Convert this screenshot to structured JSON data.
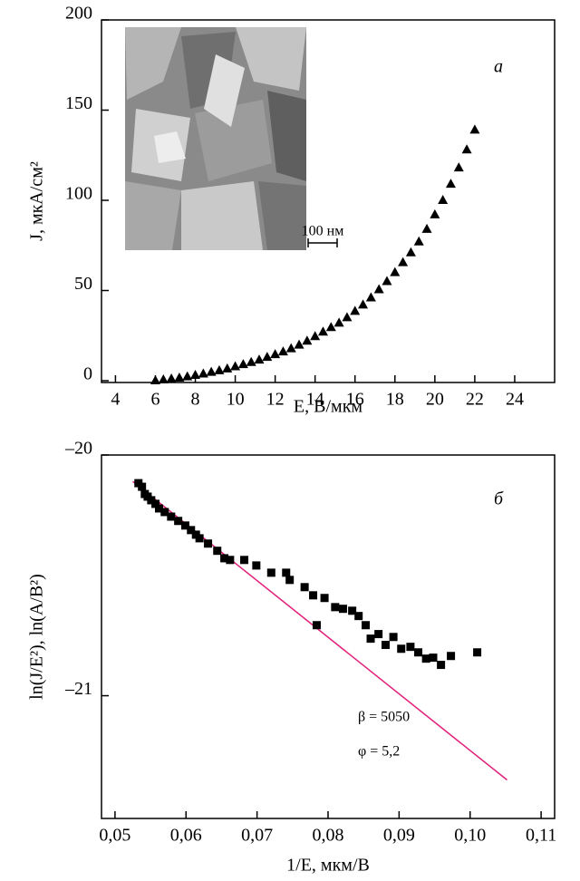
{
  "chart_data": [
    {
      "type": "scatter",
      "marker": "triangle",
      "color": "#000000",
      "panel_label": "а",
      "inset_scale_label": "100 нм",
      "x_label": "E, В/мкм",
      "y_label": "J, мкА/см²",
      "xlim": [
        3.3,
        26
      ],
      "ylim": [
        -1,
        200
      ],
      "xticks": [
        4,
        6,
        8,
        10,
        12,
        14,
        16,
        18,
        20,
        22,
        24
      ],
      "yticks": [
        0,
        50,
        100,
        150,
        200
      ],
      "x": [
        6,
        6.4,
        6.8,
        7.2,
        7.6,
        8,
        8.4,
        8.8,
        9.2,
        9.6,
        10,
        10.4,
        10.8,
        11.2,
        11.6,
        12,
        12.4,
        12.8,
        13.2,
        13.6,
        14,
        14.4,
        14.8,
        15.2,
        15.6,
        16,
        16.4,
        16.8,
        17.2,
        17.6,
        18,
        18.4,
        18.8,
        19.2,
        19.6,
        20,
        20.4,
        20.8,
        21.2,
        21.6,
        22
      ],
      "values": [
        0,
        0.5,
        1,
        1.5,
        2.2,
        3,
        3.8,
        4.7,
        5.6,
        6.6,
        7.8,
        9,
        10.2,
        11.5,
        13,
        14.5,
        16,
        17.8,
        19.8,
        22,
        24.5,
        27,
        29.5,
        32,
        35,
        38.5,
        42,
        46,
        50.5,
        55,
        60,
        65.5,
        71,
        77,
        84,
        92,
        100,
        109,
        118,
        128,
        139
      ]
    },
    {
      "type": "scatter",
      "marker": "square",
      "color": "#000000",
      "panel_label": "б",
      "annotations": [
        "β = 5050",
        "φ = 5,2"
      ],
      "x_label": "1/E, мкм/В",
      "y_label": "ln(J/E²), ln(A/B²)",
      "xlim": [
        0.0481,
        0.1119
      ],
      "ylim": [
        -21.51,
        -20
      ],
      "xticks": [
        {
          "value": 0.05,
          "label": "0,05"
        },
        {
          "value": 0.06,
          "label": "0,06"
        },
        {
          "value": 0.07,
          "label": "0,07"
        },
        {
          "value": 0.08,
          "label": "0,08"
        },
        {
          "value": 0.09,
          "label": "0,09"
        },
        {
          "value": 0.1,
          "label": "0,10"
        },
        {
          "value": 0.11,
          "label": "0,11"
        }
      ],
      "yticks": [
        {
          "value": -20,
          "label": "–20"
        },
        {
          "value": -21,
          "label": "–21"
        }
      ],
      "x": [
        0.0533,
        0.0538,
        0.0542,
        0.0546,
        0.0551,
        0.0557,
        0.0562,
        0.057,
        0.0579,
        0.0589,
        0.0599,
        0.0607,
        0.0614,
        0.0619,
        0.0631,
        0.0644,
        0.0654,
        0.0662,
        0.0682,
        0.0699,
        0.072,
        0.0741,
        0.0746,
        0.0767,
        0.0779,
        0.0795,
        0.0784,
        0.081,
        0.0821,
        0.0834,
        0.0843,
        0.0853,
        0.086,
        0.0871,
        0.0881,
        0.0892,
        0.0903,
        0.0916,
        0.0927,
        0.0938,
        0.0948,
        0.0959,
        0.0973,
        0.101
      ],
      "values": [
        -20.117,
        -20.132,
        -20.162,
        -20.173,
        -20.188,
        -20.203,
        -20.222,
        -20.237,
        -20.256,
        -20.274,
        -20.293,
        -20.312,
        -20.331,
        -20.346,
        -20.368,
        -20.398,
        -20.429,
        -20.436,
        -20.436,
        -20.459,
        -20.489,
        -20.489,
        -20.519,
        -20.549,
        -20.583,
        -20.594,
        -20.707,
        -20.632,
        -20.639,
        -20.647,
        -20.669,
        -20.707,
        -20.763,
        -20.744,
        -20.789,
        -20.756,
        -20.805,
        -20.797,
        -20.82,
        -20.846,
        -20.842,
        -20.872,
        -20.835,
        -20.82
      ],
      "fit": {
        "x": [
          0.0525,
          0.1052
        ],
        "y": [
          -20.11,
          -21.35
        ],
        "color": "#e0207a"
      }
    }
  ]
}
